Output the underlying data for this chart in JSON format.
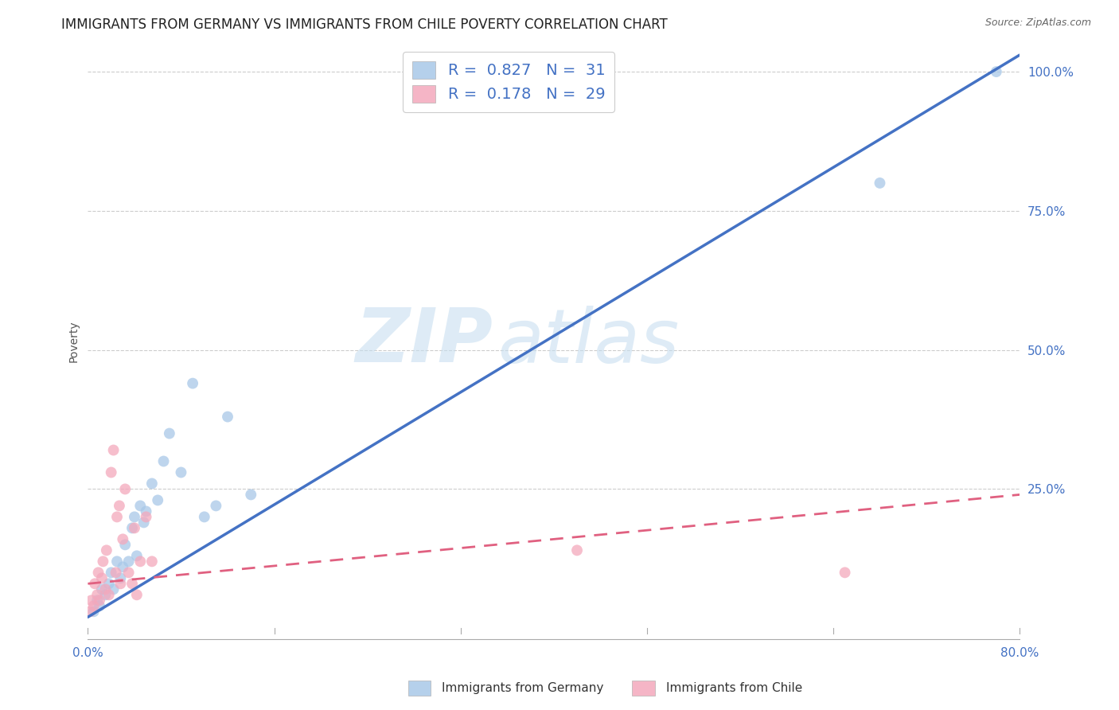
{
  "title": "IMMIGRANTS FROM GERMANY VS IMMIGRANTS FROM CHILE POVERTY CORRELATION CHART",
  "source": "Source: ZipAtlas.com",
  "xlabel_label": "Immigrants from Germany",
  "xlabel_label2": "Immigrants from Chile",
  "ylabel": "Poverty",
  "xlim": [
    0.0,
    0.8
  ],
  "ylim": [
    -0.02,
    1.05
  ],
  "yticks": [
    0.0,
    0.25,
    0.5,
    0.75,
    1.0
  ],
  "ytick_labels": [
    "",
    "25.0%",
    "50.0%",
    "75.0%",
    "100.0%"
  ],
  "xtick_labels": [
    "0.0%",
    "",
    "",
    "",
    "",
    "80.0%"
  ],
  "xticks": [
    0.0,
    0.16,
    0.32,
    0.48,
    0.64,
    0.8
  ],
  "germany_color": "#a8c8e8",
  "chile_color": "#f4a8bc",
  "germany_line_color": "#4472c4",
  "chile_line_color": "#e06080",
  "legend_R_color": "#4472c4",
  "R_germany": "0.827",
  "N_germany": "31",
  "R_chile": "0.178",
  "N_chile": "29",
  "germany_scatter_x": [
    0.005,
    0.008,
    0.01,
    0.012,
    0.015,
    0.018,
    0.02,
    0.022,
    0.025,
    0.028,
    0.03,
    0.032,
    0.035,
    0.038,
    0.04,
    0.042,
    0.045,
    0.048,
    0.05,
    0.055,
    0.06,
    0.065,
    0.07,
    0.08,
    0.09,
    0.1,
    0.11,
    0.12,
    0.14,
    0.68,
    0.78
  ],
  "germany_scatter_y": [
    0.03,
    0.05,
    0.04,
    0.07,
    0.06,
    0.08,
    0.1,
    0.07,
    0.12,
    0.09,
    0.11,
    0.15,
    0.12,
    0.18,
    0.2,
    0.13,
    0.22,
    0.19,
    0.21,
    0.26,
    0.23,
    0.3,
    0.35,
    0.28,
    0.44,
    0.2,
    0.22,
    0.38,
    0.24,
    0.8,
    1.0
  ],
  "chile_scatter_x": [
    0.002,
    0.003,
    0.005,
    0.006,
    0.008,
    0.009,
    0.01,
    0.012,
    0.013,
    0.015,
    0.016,
    0.018,
    0.02,
    0.022,
    0.024,
    0.025,
    0.027,
    0.028,
    0.03,
    0.032,
    0.035,
    0.038,
    0.04,
    0.042,
    0.045,
    0.05,
    0.055,
    0.42,
    0.65
  ],
  "chile_scatter_y": [
    0.03,
    0.05,
    0.04,
    0.08,
    0.06,
    0.1,
    0.05,
    0.09,
    0.12,
    0.07,
    0.14,
    0.06,
    0.28,
    0.32,
    0.1,
    0.2,
    0.22,
    0.08,
    0.16,
    0.25,
    0.1,
    0.08,
    0.18,
    0.06,
    0.12,
    0.2,
    0.12,
    0.14,
    0.1
  ],
  "germany_line_x": [
    0.0,
    0.8
  ],
  "germany_line_y": [
    0.02,
    1.03
  ],
  "chile_line_x": [
    0.0,
    0.8
  ],
  "chile_line_y": [
    0.08,
    0.24
  ],
  "watermark_zip": "ZIP",
  "watermark_atlas": "atlas",
  "background_color": "#ffffff",
  "grid_color": "#cccccc",
  "title_fontsize": 12,
  "axis_label_fontsize": 10,
  "tick_fontsize": 11,
  "legend_fontsize": 14
}
